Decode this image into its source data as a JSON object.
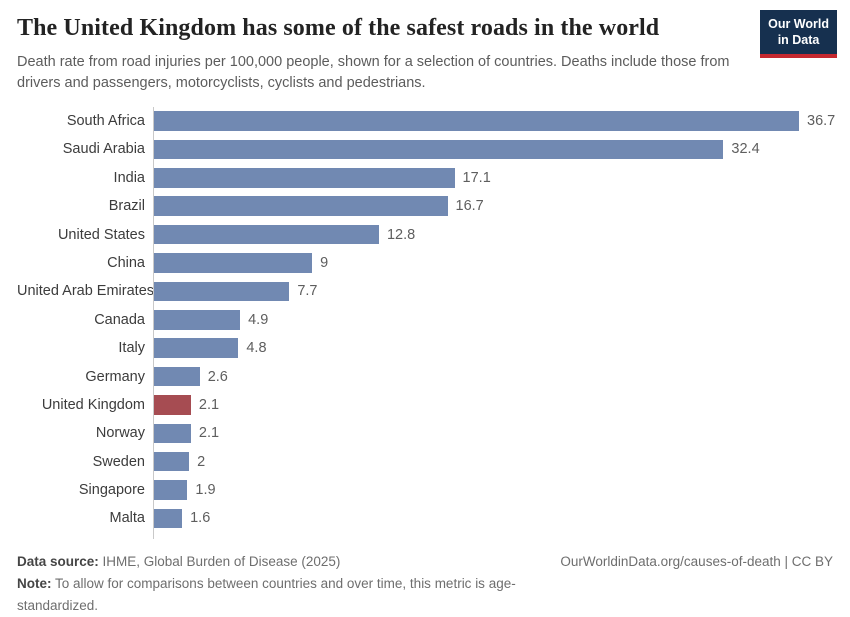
{
  "header": {
    "title": "The United Kingdom has some of the safest roads in the world",
    "subtitle": "Death rate from road injuries per 100,000 people, shown for a selection of countries. Deaths include those from drivers and passengers, motorcyclists, cyclists and pedestrians."
  },
  "logo": {
    "line1": "Our World",
    "line2": "in Data",
    "bg_color": "#16304f",
    "accent_color": "#c5282f"
  },
  "chart_data": {
    "type": "bar",
    "orientation": "horizontal",
    "title": "The United Kingdom has some of the safest roads in the world",
    "xlabel": "",
    "ylabel": "",
    "categories": [
      "South Africa",
      "Saudi Arabia",
      "India",
      "Brazil",
      "United States",
      "China",
      "United Arab Emirates",
      "Canada",
      "Italy",
      "Germany",
      "United Kingdom",
      "Norway",
      "Sweden",
      "Singapore",
      "Malta"
    ],
    "values": [
      36.7,
      32.4,
      17.1,
      16.7,
      12.8,
      9,
      7.7,
      4.9,
      4.8,
      2.6,
      2.1,
      2.1,
      2,
      1.9,
      1.6
    ],
    "value_labels": [
      "36.7",
      "32.4",
      "17.1",
      "16.7",
      "12.8",
      "9",
      "7.7",
      "4.9",
      "4.8",
      "2.6",
      "2.1",
      "2.1",
      "2",
      "1.9",
      "1.6"
    ],
    "highlight_category": "United Kingdom",
    "bar_color": "#7189b2",
    "highlight_color": "#a64c52",
    "xlim": [
      0,
      36.7
    ],
    "grid": false,
    "legend": false
  },
  "footer": {
    "datasource_label": "Data source:",
    "datasource_text": " IHME, Global Burden of Disease (2025)",
    "note_label": "Note:",
    "note_text": " To allow for comparisons between countries and over time, this metric is age-standardized.",
    "rights": "OurWorldinData.org/causes-of-death | CC BY"
  }
}
